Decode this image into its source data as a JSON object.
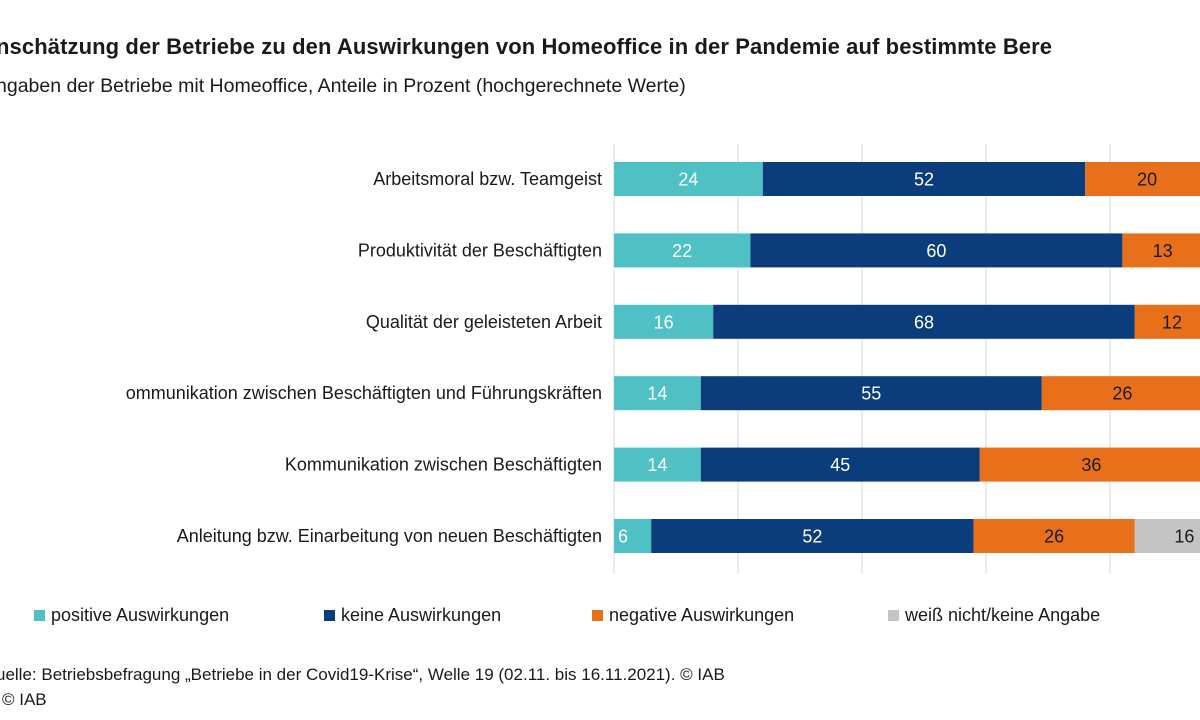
{
  "header": {
    "title": "nschätzung der Betriebe zu den Auswirkungen von Homeoffice in der Pandemie auf bestimmte Bere",
    "subtitle": "ngaben der Betriebe mit Homeoffice, Anteile in Prozent (hochgerechnete Werte)"
  },
  "chart_data": {
    "type": "bar",
    "orientation": "horizontal",
    "stacked": true,
    "categories": [
      "Arbeitsmoral bzw. Teamgeist",
      "Produktivität der Beschäftigten",
      "Qualität der geleisteten Arbeit",
      "ommunikation zwischen Beschäftigten und Führungskräften",
      "Kommunikation zwischen Beschäftigten",
      "Anleitung bzw. Einarbeitung von neuen Beschäftigten"
    ],
    "series": [
      {
        "name": "positive Auswirkungen",
        "color": "#4fc1c4",
        "values": [
          24,
          22,
          16,
          14,
          14,
          6
        ]
      },
      {
        "name": "keine Auswirkungen",
        "color": "#0b3c7c",
        "values": [
          52,
          60,
          68,
          55,
          45,
          52
        ]
      },
      {
        "name": "negative Auswirkungen",
        "color": "#e8701a",
        "values": [
          20,
          13,
          12,
          26,
          36,
          26
        ]
      },
      {
        "name": "weiß nicht/keine Angabe",
        "color": "#c4c4c4",
        "values": [
          null,
          null,
          null,
          null,
          null,
          16
        ]
      }
    ],
    "xlim": [
      0,
      100
    ],
    "grid": true,
    "legend_position": "bottom"
  },
  "source": "uelle: Betriebsbefragung „Betriebe in der Covid19-Krise“, Welle 19 (02.11. bis 16.11.2021). © IAB",
  "credit": "© IAB"
}
